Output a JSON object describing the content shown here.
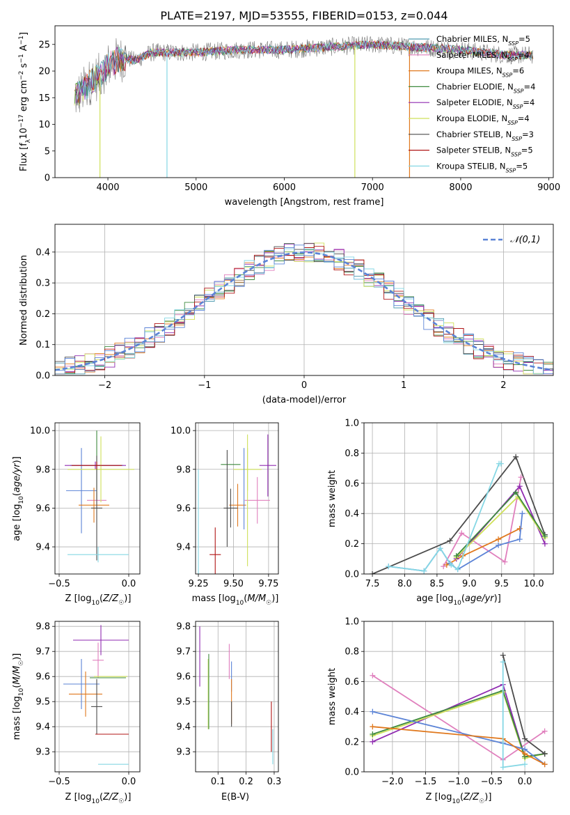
{
  "title": "PLATE=2197, MJD=53555, FIBERID=0153, z=0.044",
  "colors": {
    "Chabrier MILES": "#4f9bb1",
    "Salpeter MILES": "#e07fbd",
    "Kroupa MILES": "#e0781d",
    "Chabrier ELODIE": "#3e8a3e",
    "Salpeter ELODIE": "#8f2ab0",
    "Kroupa ELODIE": "#cfe15a",
    "Chabrier STELIB": "#4b4b4b",
    "Salpeter STELIB": "#b01515",
    "Kroupa STELIB": "#85d7e4",
    "blue": "#5b83d6"
  },
  "chart_data": [
    {
      "type": "line",
      "name": "spectrum",
      "xlabel": "wavelength [Angstrom, rest frame]",
      "ylabel": "Flux [f_λ10^-17 erg cm^-2 s^-1 A^-1]",
      "xlim": [
        3400,
        9050
      ],
      "ylim": [
        0,
        28.5
      ],
      "xticks": [
        "4000",
        "5000",
        "6000",
        "7000",
        "8000",
        "9000"
      ],
      "yticks": [
        "0",
        "5",
        "10",
        "15",
        "20",
        "25"
      ],
      "legend_position": "top-right",
      "legend": [
        {
          "name": "Chabrier MILES",
          "label": "Chabrier MILES, N",
          "sub": "SSP",
          "tail": "=5"
        },
        {
          "name": "Salpeter MILES",
          "label": "Salpeter MILES, N",
          "sub": "SSP",
          "tail": "=4"
        },
        {
          "name": "Kroupa MILES",
          "label": "Kroupa MILES, N",
          "sub": "SSP",
          "tail": "=6"
        },
        {
          "name": "Chabrier ELODIE",
          "label": "Chabrier ELODIE, N",
          "sub": "SSP",
          "tail": "=4"
        },
        {
          "name": "Salpeter ELODIE",
          "label": "Salpeter ELODIE, N",
          "sub": "SSP",
          "tail": "=4"
        },
        {
          "name": "Kroupa ELODIE",
          "label": "Kroupa ELODIE, N",
          "sub": "SSP",
          "tail": "=4"
        },
        {
          "name": "Chabrier STELIB",
          "label": "Chabrier STELIB, N",
          "sub": "SSP",
          "tail": "=3"
        },
        {
          "name": "Salpeter STELIB",
          "label": "Salpeter STELIB, N",
          "sub": "SSP",
          "tail": "=5"
        },
        {
          "name": "Kroupa STELIB",
          "label": "Kroupa STELIB, N",
          "sub": "SSP",
          "tail": "=5"
        }
      ],
      "continuum": [
        [
          3620,
          15
        ],
        [
          3700,
          16
        ],
        [
          3800,
          18
        ],
        [
          3900,
          19
        ],
        [
          4000,
          21
        ],
        [
          4100,
          22
        ],
        [
          4200,
          22.5
        ],
        [
          4300,
          22
        ],
        [
          4500,
          23.5
        ],
        [
          5000,
          23.5
        ],
        [
          5500,
          24
        ],
        [
          6000,
          24
        ],
        [
          6500,
          24.5
        ],
        [
          7000,
          25
        ],
        [
          7500,
          24.5
        ],
        [
          8000,
          24
        ],
        [
          8500,
          23
        ],
        [
          8820,
          23
        ]
      ],
      "drops": [
        {
          "x": 3910,
          "y": 0,
          "series": "Kroupa ELODIE"
        },
        {
          "x": 4670,
          "y": 0,
          "series": "Kroupa STELIB"
        },
        {
          "x": 6800,
          "y": 0,
          "series": "Kroupa ELODIE"
        },
        {
          "x": 7420,
          "y": 0,
          "series": "Kroupa MILES"
        }
      ]
    },
    {
      "type": "bar",
      "name": "residual-histogram",
      "xlabel": "(data-model)/error",
      "ylabel": "Normed distribution",
      "xlim": [
        -2.5,
        2.5
      ],
      "ylim": [
        0,
        0.49
      ],
      "xticks": [
        "−2",
        "−1",
        "0",
        "1",
        "2"
      ],
      "yticks": [
        "0.0",
        "0.1",
        "0.2",
        "0.3",
        "0.4"
      ],
      "legend_position": "top-right",
      "reference_curve": {
        "name": "𝒩(0,1)",
        "mean": 0,
        "std": 1
      },
      "bin_width": 0.1
    },
    {
      "type": "scatter",
      "name": "age-vs-Z",
      "xlabel": "Z [log10(Z/Z☉)]",
      "ylabel": "age [log10(age/yr)]",
      "xlim": [
        -0.53,
        0.08
      ],
      "ylim": [
        9.26,
        10.04
      ],
      "xticks": [
        -0.5,
        0.0
      ],
      "yticks": [
        9.4,
        9.6,
        9.8,
        10.0
      ],
      "points": [
        {
          "series": "blue",
          "x": -0.34,
          "y": 9.69,
          "xerr": 0.11,
          "yerr": 0.22
        },
        {
          "series": "Salpeter MILES",
          "x": -0.23,
          "y": 9.64,
          "xerr": 0.07,
          "yerr": 0.04
        },
        {
          "series": "Kroupa MILES",
          "x": -0.25,
          "y": 9.615,
          "xerr": 0.11,
          "yerr": 0.09
        },
        {
          "series": "Chabrier ELODIE",
          "x": -0.23,
          "y": 9.82,
          "xerr": 0.19,
          "yerr": 0.18
        },
        {
          "series": "Salpeter ELODIE",
          "x": -0.24,
          "y": 9.82,
          "xerr": 0.22,
          "yerr": 0.02
        },
        {
          "series": "Kroupa ELODIE",
          "x": -0.2,
          "y": 9.8,
          "xerr": 0.24,
          "yerr": 0.17
        },
        {
          "series": "Chabrier STELIB",
          "x": -0.23,
          "y": 9.6,
          "xerr": 0.04,
          "yerr": 0.27
        },
        {
          "series": "Salpeter STELIB",
          "x": -0.23,
          "y": 9.82,
          "xerr": 0.18,
          "yerr": 0.02
        },
        {
          "series": "Kroupa STELIB",
          "x": -0.22,
          "y": 9.36,
          "xerr": 0.22,
          "yerr": 0.04
        }
      ]
    },
    {
      "type": "scatter",
      "name": "age-vs-mass",
      "xlabel": "mass [log10(M/M☉)]",
      "ylabel": "",
      "xlim": [
        9.23,
        9.82
      ],
      "ylim": [
        9.26,
        10.04
      ],
      "xticks": [
        9.25,
        9.5,
        9.75
      ],
      "yticks": [
        9.4,
        9.6,
        9.8,
        10.0
      ],
      "points": [
        {
          "series": "blue",
          "x": 9.57,
          "y": 9.69,
          "xerr": 0.0,
          "yerr": 0.0
        },
        {
          "series": "Salpeter MILES",
          "x": 9.67,
          "y": 9.64,
          "xerr": 0.09,
          "yerr": 0.12
        },
        {
          "series": "Kroupa MILES",
          "x": 9.53,
          "y": 9.615,
          "xerr": 0.06,
          "yerr": 0.11
        },
        {
          "series": "Chabrier ELODIE",
          "x": 9.48,
          "y": 9.825,
          "xerr": 0.07,
          "yerr": 0.0
        },
        {
          "series": "Salpeter ELODIE",
          "x": 9.745,
          "y": 9.82,
          "xerr": 0.06,
          "yerr": 0.16
        },
        {
          "series": "Kroupa ELODIE",
          "x": 9.6,
          "y": 9.8,
          "xerr": 0.1,
          "yerr": 0.11
        },
        {
          "series": "Chabrier STELIB",
          "x": 9.48,
          "y": 9.6,
          "xerr": 0.05,
          "yerr": 0.1
        },
        {
          "series": "Salpeter STELIB",
          "x": 9.37,
          "y": 9.36,
          "xerr": 0.04,
          "yerr": 0.14
        },
        {
          "series": "Kroupa STELIB",
          "x": 9.25,
          "y": 9.36,
          "xerr": 0.0,
          "yerr": 0.44
        },
        {
          "series": "Kroupa ELODIE",
          "x": 9.6,
          "y": 9.64,
          "xerr": 0.0,
          "yerr": 0.34
        },
        {
          "series": "blue",
          "x": 9.575,
          "y": 9.7,
          "xerr": 0.0,
          "yerr": 0.21
        },
        {
          "series": "Chabrier STELIB",
          "x": 9.455,
          "y": 9.65,
          "xerr": 0.0,
          "yerr": 0.25
        }
      ]
    },
    {
      "type": "line",
      "name": "weight-vs-age",
      "xlabel": "age [log10(age/yr)]",
      "ylabel": "mass weight",
      "xlim": [
        7.37,
        10.3
      ],
      "ylim": [
        0,
        1.0
      ],
      "xticks": [
        7.5,
        8.0,
        8.5,
        9.0,
        9.5,
        10.0
      ],
      "yticks": [
        0.0,
        0.2,
        0.4,
        0.6,
        0.8,
        1.0
      ],
      "series": [
        {
          "series": "Chabrier STELIB",
          "x": [
            7.5,
            8.7,
            9.72,
            10.17
          ],
          "y": [
            0.0,
            0.22,
            0.775,
            0.26
          ]
        },
        {
          "series": "Salpeter MILES",
          "x": [
            8.6,
            8.88,
            9.55,
            9.8
          ],
          "y": [
            0.05,
            0.27,
            0.08,
            0.64
          ]
        },
        {
          "series": "Kroupa MILES",
          "x": [
            8.65,
            8.9,
            9.45,
            9.78
          ],
          "y": [
            0.06,
            0.12,
            0.23,
            0.3
          ]
        },
        {
          "series": "Salpeter ELODIE",
          "x": [
            8.8,
            9.78,
            10.17
          ],
          "y": [
            0.1,
            0.58,
            0.2
          ]
        },
        {
          "series": "Kroupa ELODIE",
          "x": [
            8.8,
            9.75,
            10.17
          ],
          "y": [
            0.11,
            0.51,
            0.24
          ]
        },
        {
          "series": "Chabrier ELODIE",
          "x": [
            8.8,
            9.72,
            10.17
          ],
          "y": [
            0.12,
            0.54,
            0.25
          ]
        },
        {
          "series": "blue",
          "x": [
            7.75,
            8.3,
            8.55,
            8.7,
            8.82,
            9.45,
            9.78,
            9.82
          ],
          "y": [
            0.05,
            0.02,
            0.17,
            0.07,
            0.03,
            0.19,
            0.23,
            0.4
          ]
        },
        {
          "series": "Kroupa STELIB",
          "x": [
            7.75,
            8.3,
            8.55,
            8.72,
            8.82,
            9.46,
            9.49
          ],
          "y": [
            0.05,
            0.02,
            0.17,
            0.06,
            0.03,
            0.73,
            0.73
          ]
        }
      ]
    },
    {
      "type": "scatter",
      "name": "mass-vs-Z",
      "xlabel": "Z [log10(Z/Z☉)]",
      "ylabel": "mass [log10(M/M☉)]",
      "xlim": [
        -0.53,
        0.08
      ],
      "ylim": [
        9.22,
        9.82
      ],
      "xticks": [
        -0.5,
        0.0
      ],
      "yticks": [
        9.3,
        9.4,
        9.5,
        9.6,
        9.7,
        9.8
      ],
      "points": [
        {
          "series": "blue",
          "x": -0.34,
          "y": 9.57,
          "xerr": 0.13,
          "yerr": 0.1
        },
        {
          "series": "Salpeter MILES",
          "x": -0.22,
          "y": 9.665,
          "xerr": 0.04,
          "yerr": 0.07
        },
        {
          "series": "Kroupa MILES",
          "x": -0.31,
          "y": 9.53,
          "xerr": 0.12,
          "yerr": 0.09
        },
        {
          "series": "Chabrier ELODIE",
          "x": -0.15,
          "y": 9.595,
          "xerr": 0.13,
          "yerr": 0.0
        },
        {
          "series": "Salpeter ELODIE",
          "x": -0.2,
          "y": 9.745,
          "xerr": 0.2,
          "yerr": 0.06
        },
        {
          "series": "Kroupa ELODIE",
          "x": -0.13,
          "y": 9.6,
          "xerr": 0.12,
          "yerr": 0.0
        },
        {
          "series": "Chabrier STELIB",
          "x": -0.23,
          "y": 9.48,
          "xerr": 0.04,
          "yerr": 0.11
        },
        {
          "series": "Salpeter STELIB",
          "x": -0.12,
          "y": 9.37,
          "xerr": 0.12,
          "yerr": 0.0
        },
        {
          "series": "Kroupa STELIB",
          "x": -0.11,
          "y": 9.25,
          "xerr": 0.11,
          "yerr": 0.0
        }
      ]
    },
    {
      "type": "scatter",
      "name": "mass-vs-EBV",
      "xlabel": "E(B-V)",
      "ylabel": "",
      "xlim": [
        0.02,
        0.315
      ],
      "ylim": [
        9.22,
        9.82
      ],
      "xticks": [
        0.1,
        0.2,
        0.3
      ],
      "yticks": [
        9.3,
        9.4,
        9.5,
        9.6,
        9.7,
        9.8
      ],
      "points": [
        {
          "series": "Salpeter ELODIE",
          "x": 0.035,
          "y": 9.68,
          "yerr": 0.12
        },
        {
          "series": "Kroupa ELODIE",
          "x": 0.065,
          "y": 9.53,
          "yerr": 0.14
        },
        {
          "series": "Chabrier ELODIE",
          "x": 0.067,
          "y": 9.54,
          "yerr": 0.15
        },
        {
          "series": "Salpeter MILES",
          "x": 0.14,
          "y": 9.66,
          "yerr": 0.07
        },
        {
          "series": "blue",
          "x": 0.148,
          "y": 9.6,
          "yerr": 0.06
        },
        {
          "series": "Kroupa MILES",
          "x": 0.148,
          "y": 9.5,
          "yerr": 0.09
        },
        {
          "series": "Chabrier STELIB",
          "x": 0.148,
          "y": 9.45,
          "yerr": 0.05
        },
        {
          "series": "Salpeter STELIB",
          "x": 0.29,
          "y": 9.4,
          "yerr": 0.1
        },
        {
          "series": "Kroupa STELIB",
          "x": 0.295,
          "y": 9.32,
          "yerr": 0.07
        }
      ]
    },
    {
      "type": "line",
      "name": "weight-vs-Z",
      "xlabel": "Z [log10(Z/Z☉)]",
      "ylabel": "mass weight",
      "xlim": [
        -2.43,
        0.43
      ],
      "ylim": [
        0,
        1.0
      ],
      "xticks": [
        -2.0,
        -1.5,
        -1.0,
        -0.5,
        0.0
      ],
      "yticks": [
        0.0,
        0.2,
        0.4,
        0.6,
        0.8,
        1.0
      ],
      "series": [
        {
          "series": "Salpeter MILES",
          "x": [
            -2.3,
            -0.33,
            0.3
          ],
          "y": [
            0.64,
            0.08,
            0.27
          ]
        },
        {
          "series": "Salpeter ELODIE",
          "x": [
            -2.3,
            -0.33,
            0.0,
            0.3
          ],
          "y": [
            0.2,
            0.58,
            0.1,
            0.12
          ]
        },
        {
          "series": "Kroupa ELODIE",
          "x": [
            -2.3,
            -0.33,
            0.0,
            0.3
          ],
          "y": [
            0.24,
            0.53,
            0.09,
            0.12
          ]
        },
        {
          "series": "Chabrier ELODIE",
          "x": [
            -2.3,
            -0.33,
            0.0,
            0.3
          ],
          "y": [
            0.25,
            0.54,
            0.1,
            0.12
          ]
        },
        {
          "series": "blue",
          "x": [
            -2.3,
            -0.33,
            0.0,
            0.3
          ],
          "y": [
            0.4,
            0.19,
            0.15,
            0.05
          ]
        },
        {
          "series": "Kroupa MILES",
          "x": [
            -2.3,
            -0.33,
            0.0,
            0.3
          ],
          "y": [
            0.3,
            0.22,
            0.12,
            0.05
          ]
        },
        {
          "series": "Chabrier STELIB",
          "x": [
            -0.33,
            0.0,
            0.3
          ],
          "y": [
            0.775,
            0.22,
            0.12
          ]
        },
        {
          "series": "Kroupa STELIB",
          "x": [
            -0.33,
            -0.33,
            0.0
          ],
          "y": [
            0.73,
            0.03,
            0.05
          ]
        }
      ]
    }
  ]
}
